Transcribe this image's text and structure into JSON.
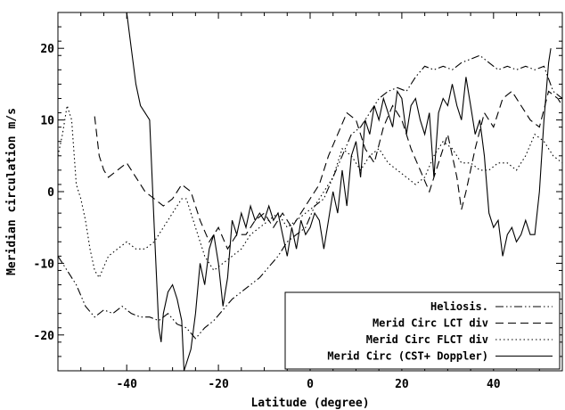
{
  "chart_data": {
    "type": "line",
    "xlabel": "Latitude (degree)",
    "ylabel": "Meridian circulation m/s",
    "xlim": [
      -55,
      55
    ],
    "ylim": [
      -25,
      25
    ],
    "xticks": [
      -40,
      -20,
      0,
      20,
      40
    ],
    "yticks": [
      -20,
      -10,
      0,
      10,
      20
    ],
    "grid": false,
    "legend_position": "bottom-right",
    "series": [
      {
        "name": "Heliosis.",
        "style": "dash-dot-dot",
        "color": "#000000",
        "points": [
          [
            -55,
            -9
          ],
          [
            -53,
            -11
          ],
          [
            -51,
            -13
          ],
          [
            -49,
            -16
          ],
          [
            -47,
            -17.5
          ],
          [
            -45,
            -16.5
          ],
          [
            -43,
            -17
          ],
          [
            -41,
            -16
          ],
          [
            -39,
            -17
          ],
          [
            -37,
            -17.5
          ],
          [
            -35,
            -17.5
          ],
          [
            -33,
            -18
          ],
          [
            -31,
            -17
          ],
          [
            -29,
            -18.5
          ],
          [
            -27,
            -19
          ],
          [
            -25,
            -20.5
          ],
          [
            -23,
            -19
          ],
          [
            -21,
            -18
          ],
          [
            -19,
            -16.5
          ],
          [
            -17,
            -15
          ],
          [
            -15,
            -14
          ],
          [
            -13,
            -13
          ],
          [
            -11,
            -12
          ],
          [
            -9,
            -10.5
          ],
          [
            -7,
            -9
          ],
          [
            -5,
            -7
          ],
          [
            -3,
            -6
          ],
          [
            -1,
            -5
          ],
          [
            1,
            -2
          ],
          [
            3,
            -1
          ],
          [
            5,
            2
          ],
          [
            7,
            5
          ],
          [
            9,
            8
          ],
          [
            11,
            9
          ],
          [
            13,
            11
          ],
          [
            15,
            13
          ],
          [
            17,
            14
          ],
          [
            19,
            14.5
          ],
          [
            21,
            14
          ],
          [
            23,
            16
          ],
          [
            25,
            17.5
          ],
          [
            27,
            17
          ],
          [
            29,
            17.5
          ],
          [
            31,
            17
          ],
          [
            33,
            18
          ],
          [
            35,
            18.5
          ],
          [
            37,
            19
          ],
          [
            39,
            18
          ],
          [
            41,
            17
          ],
          [
            43,
            17.5
          ],
          [
            45,
            17
          ],
          [
            47,
            17.5
          ],
          [
            49,
            17
          ],
          [
            51,
            17.5
          ],
          [
            53,
            14
          ],
          [
            55,
            13
          ]
        ]
      },
      {
        "name": "Merid Circ LCT div",
        "style": "dashed",
        "color": "#000000",
        "points": [
          [
            -47,
            10.5
          ],
          [
            -46,
            5
          ],
          [
            -45,
            3
          ],
          [
            -44,
            2
          ],
          [
            -42,
            3
          ],
          [
            -40,
            4
          ],
          [
            -38,
            2
          ],
          [
            -36,
            0
          ],
          [
            -34,
            -1
          ],
          [
            -32,
            -2
          ],
          [
            -30,
            -1
          ],
          [
            -28,
            1
          ],
          [
            -26,
            0
          ],
          [
            -24,
            -4
          ],
          [
            -22,
            -7
          ],
          [
            -20,
            -5
          ],
          [
            -18,
            -8
          ],
          [
            -16,
            -6
          ],
          [
            -14,
            -6
          ],
          [
            -12,
            -4
          ],
          [
            -10,
            -3
          ],
          [
            -8,
            -5
          ],
          [
            -6,
            -3
          ],
          [
            -4,
            -5
          ],
          [
            -2,
            -3
          ],
          [
            0,
            -1
          ],
          [
            2,
            1
          ],
          [
            4,
            5
          ],
          [
            6,
            8
          ],
          [
            8,
            11
          ],
          [
            10,
            10
          ],
          [
            12,
            6
          ],
          [
            14,
            4
          ],
          [
            16,
            9
          ],
          [
            18,
            12
          ],
          [
            20,
            10
          ],
          [
            22,
            6
          ],
          [
            24,
            3
          ],
          [
            26,
            0
          ],
          [
            28,
            4
          ],
          [
            30,
            8
          ],
          [
            32,
            2
          ],
          [
            33,
            -2.5
          ],
          [
            34,
            0
          ],
          [
            36,
            6
          ],
          [
            38,
            11
          ],
          [
            40,
            9
          ],
          [
            42,
            13
          ],
          [
            44,
            14
          ],
          [
            46,
            12
          ],
          [
            48,
            10
          ],
          [
            50,
            9
          ],
          [
            52,
            14
          ],
          [
            54,
            13
          ],
          [
            55,
            12
          ]
        ]
      },
      {
        "name": "Merid Circ FLCT div",
        "style": "dotted",
        "color": "#000000",
        "points": [
          [
            -55,
            5
          ],
          [
            -54,
            8
          ],
          [
            -53,
            12
          ],
          [
            -52,
            10
          ],
          [
            -51,
            1
          ],
          [
            -50,
            -1
          ],
          [
            -49,
            -4
          ],
          [
            -48,
            -8
          ],
          [
            -47,
            -11
          ],
          [
            -46,
            -12
          ],
          [
            -44,
            -9
          ],
          [
            -42,
            -8
          ],
          [
            -40,
            -7
          ],
          [
            -38,
            -8
          ],
          [
            -36,
            -8
          ],
          [
            -34,
            -7
          ],
          [
            -32,
            -5
          ],
          [
            -30,
            -3
          ],
          [
            -28,
            -1
          ],
          [
            -27,
            -1
          ],
          [
            -25,
            -5
          ],
          [
            -23,
            -9
          ],
          [
            -21,
            -11
          ],
          [
            -19,
            -10
          ],
          [
            -17,
            -9
          ],
          [
            -15,
            -8
          ],
          [
            -13,
            -6
          ],
          [
            -11,
            -5
          ],
          [
            -9,
            -4
          ],
          [
            -7,
            -3
          ],
          [
            -5,
            -5
          ],
          [
            -3,
            -4
          ],
          [
            -1,
            -3
          ],
          [
            1,
            -2
          ],
          [
            3,
            0
          ],
          [
            5,
            2
          ],
          [
            7,
            6
          ],
          [
            9,
            5
          ],
          [
            11,
            3
          ],
          [
            13,
            5
          ],
          [
            15,
            6
          ],
          [
            17,
            4
          ],
          [
            19,
            3
          ],
          [
            21,
            2
          ],
          [
            23,
            1
          ],
          [
            25,
            2
          ],
          [
            27,
            5
          ],
          [
            29,
            7
          ],
          [
            31,
            6
          ],
          [
            33,
            4
          ],
          [
            35,
            4
          ],
          [
            37,
            3
          ],
          [
            39,
            3
          ],
          [
            41,
            4
          ],
          [
            43,
            4
          ],
          [
            45,
            3
          ],
          [
            47,
            5
          ],
          [
            49,
            8
          ],
          [
            51,
            7
          ],
          [
            53,
            5
          ],
          [
            55,
            4
          ]
        ]
      },
      {
        "name": "Merid Circ (CST+ Doppler)",
        "style": "solid",
        "color": "#000000",
        "points": [
          [
            -40,
            25
          ],
          [
            -39,
            20
          ],
          [
            -38,
            15
          ],
          [
            -37,
            12
          ],
          [
            -36,
            11
          ],
          [
            -35,
            10
          ],
          [
            -34,
            -5
          ],
          [
            -33,
            -19
          ],
          [
            -32.5,
            -21
          ],
          [
            -32,
            -17
          ],
          [
            -31,
            -14
          ],
          [
            -30,
            -13
          ],
          [
            -29,
            -15
          ],
          [
            -28,
            -18
          ],
          [
            -27.5,
            -25
          ],
          [
            -27,
            -24
          ],
          [
            -26,
            -22
          ],
          [
            -25,
            -17
          ],
          [
            -24,
            -10
          ],
          [
            -23,
            -13
          ],
          [
            -22,
            -8
          ],
          [
            -21,
            -6
          ],
          [
            -20,
            -10
          ],
          [
            -19,
            -16
          ],
          [
            -18,
            -12
          ],
          [
            -17,
            -4
          ],
          [
            -16,
            -6
          ],
          [
            -15,
            -3
          ],
          [
            -14,
            -5
          ],
          [
            -13,
            -2
          ],
          [
            -12,
            -4
          ],
          [
            -11,
            -3
          ],
          [
            -10,
            -4
          ],
          [
            -9,
            -2
          ],
          [
            -8,
            -4
          ],
          [
            -7,
            -3
          ],
          [
            -6,
            -6
          ],
          [
            -5,
            -9
          ],
          [
            -4,
            -5
          ],
          [
            -3,
            -8
          ],
          [
            -2,
            -4
          ],
          [
            -1,
            -6
          ],
          [
            0,
            -5
          ],
          [
            1,
            -3
          ],
          [
            2,
            -4
          ],
          [
            3,
            -8
          ],
          [
            4,
            -4
          ],
          [
            5,
            0
          ],
          [
            6,
            -3
          ],
          [
            7,
            3
          ],
          [
            8,
            -2
          ],
          [
            9,
            5
          ],
          [
            10,
            7
          ],
          [
            11,
            2
          ],
          [
            12,
            10
          ],
          [
            13,
            8
          ],
          [
            14,
            12
          ],
          [
            15,
            10
          ],
          [
            16,
            13
          ],
          [
            17,
            11
          ],
          [
            18,
            9
          ],
          [
            19,
            14
          ],
          [
            20,
            13
          ],
          [
            21,
            8
          ],
          [
            22,
            12
          ],
          [
            23,
            13
          ],
          [
            24,
            10
          ],
          [
            25,
            8
          ],
          [
            26,
            11
          ],
          [
            27,
            2
          ],
          [
            28,
            11
          ],
          [
            29,
            13
          ],
          [
            30,
            12
          ],
          [
            31,
            15
          ],
          [
            32,
            12
          ],
          [
            33,
            10
          ],
          [
            34,
            16
          ],
          [
            35,
            12
          ],
          [
            36,
            8
          ],
          [
            37,
            10
          ],
          [
            38,
            5
          ],
          [
            39,
            -3
          ],
          [
            40,
            -5
          ],
          [
            41,
            -4
          ],
          [
            42,
            -9
          ],
          [
            43,
            -6
          ],
          [
            44,
            -5
          ],
          [
            45,
            -7
          ],
          [
            46,
            -6
          ],
          [
            47,
            -4
          ],
          [
            48,
            -6
          ],
          [
            49,
            -6
          ],
          [
            50,
            0
          ],
          [
            51,
            10
          ],
          [
            52,
            18
          ],
          [
            52.5,
            20
          ]
        ]
      }
    ]
  }
}
